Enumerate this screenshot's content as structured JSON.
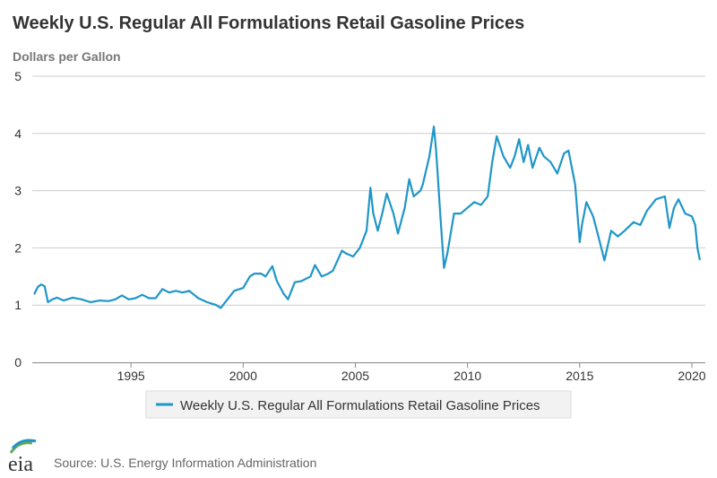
{
  "chart_data": {
    "type": "line",
    "title": "Weekly U.S. Regular All Formulations Retail Gasoline Prices",
    "ylabel": "Dollars per Gallon",
    "xlabel": "",
    "ylim": [
      0,
      5
    ],
    "xlim": [
      1990.6,
      2020.6
    ],
    "y_ticks": [
      "0",
      "1",
      "2",
      "3",
      "4",
      "5"
    ],
    "x_ticks": [
      "1995",
      "2000",
      "2005",
      "2010",
      "2015",
      "2020"
    ],
    "grid": true,
    "legend": "bottom-center",
    "color": "#1f96c8",
    "series": [
      {
        "name": "Weekly U.S. Regular All Formulations Retail Gasoline Prices",
        "x": [
          1990.7,
          1990.85,
          1991.0,
          1991.15,
          1991.3,
          1991.5,
          1991.7,
          1992.0,
          1992.4,
          1992.8,
          1993.2,
          1993.6,
          1994.0,
          1994.3,
          1994.6,
          1994.9,
          1995.2,
          1995.5,
          1995.8,
          1996.1,
          1996.4,
          1996.7,
          1997.0,
          1997.3,
          1997.6,
          1998.0,
          1998.4,
          1998.8,
          1999.0,
          1999.3,
          1999.6,
          2000.0,
          2000.3,
          2000.5,
          2000.8,
          2001.0,
          2001.3,
          2001.5,
          2001.8,
          2002.0,
          2002.3,
          2002.6,
          2003.0,
          2003.2,
          2003.5,
          2003.8,
          2004.0,
          2004.4,
          2004.6,
          2004.9,
          2005.2,
          2005.5,
          2005.67,
          2005.8,
          2006.0,
          2006.2,
          2006.4,
          2006.7,
          2006.9,
          2007.2,
          2007.4,
          2007.6,
          2007.9,
          2008.0,
          2008.3,
          2008.5,
          2008.6,
          2008.8,
          2008.95,
          2009.1,
          2009.4,
          2009.7,
          2010.0,
          2010.3,
          2010.6,
          2010.9,
          2011.1,
          2011.3,
          2011.6,
          2011.9,
          2012.1,
          2012.3,
          2012.5,
          2012.7,
          2012.9,
          2013.2,
          2013.4,
          2013.7,
          2014.0,
          2014.3,
          2014.5,
          2014.8,
          2015.0,
          2015.1,
          2015.3,
          2015.6,
          2015.9,
          2016.1,
          2016.4,
          2016.7,
          2017.0,
          2017.4,
          2017.7,
          2018.0,
          2018.4,
          2018.8,
          2019.0,
          2019.2,
          2019.4,
          2019.7,
          2020.0,
          2020.15,
          2020.25,
          2020.35
        ],
        "values": [
          1.2,
          1.32,
          1.36,
          1.33,
          1.05,
          1.1,
          1.13,
          1.08,
          1.13,
          1.1,
          1.05,
          1.08,
          1.07,
          1.1,
          1.17,
          1.1,
          1.12,
          1.18,
          1.12,
          1.12,
          1.28,
          1.22,
          1.25,
          1.22,
          1.25,
          1.12,
          1.05,
          1.0,
          0.95,
          1.1,
          1.25,
          1.3,
          1.5,
          1.55,
          1.55,
          1.5,
          1.68,
          1.42,
          1.2,
          1.1,
          1.4,
          1.42,
          1.5,
          1.7,
          1.5,
          1.55,
          1.6,
          1.95,
          1.9,
          1.85,
          2.0,
          2.3,
          3.05,
          2.6,
          2.3,
          2.6,
          2.95,
          2.6,
          2.25,
          2.7,
          3.2,
          2.9,
          3.0,
          3.1,
          3.6,
          4.12,
          3.7,
          2.5,
          1.65,
          1.9,
          2.6,
          2.6,
          2.7,
          2.8,
          2.75,
          2.9,
          3.5,
          3.95,
          3.6,
          3.4,
          3.6,
          3.9,
          3.5,
          3.8,
          3.4,
          3.75,
          3.6,
          3.5,
          3.3,
          3.65,
          3.7,
          3.1,
          2.1,
          2.4,
          2.8,
          2.55,
          2.1,
          1.78,
          2.3,
          2.2,
          2.3,
          2.45,
          2.4,
          2.65,
          2.85,
          2.9,
          2.35,
          2.7,
          2.85,
          2.6,
          2.55,
          2.4,
          2.0,
          1.8
        ]
      }
    ]
  },
  "source_text": "Source: U.S. Energy Information Administration",
  "logo_text": "eia"
}
